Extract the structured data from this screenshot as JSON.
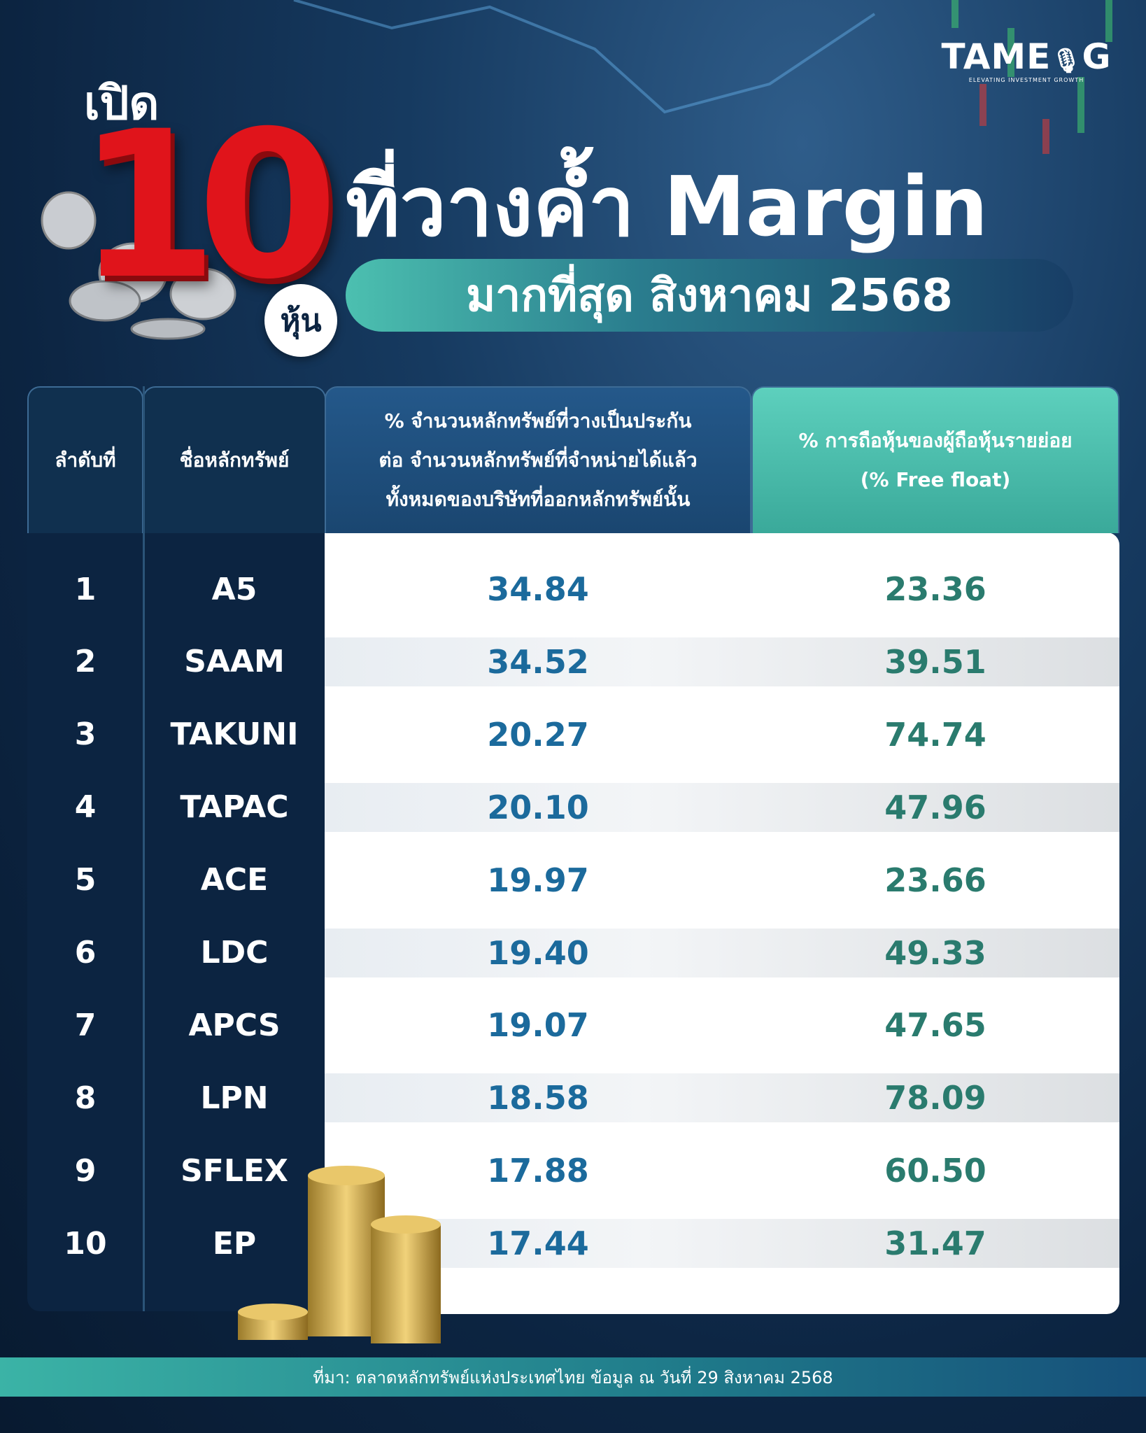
{
  "logo": {
    "name": "TAME",
    "suffix": "G",
    "tagline": "ELEVATING INVESTMENT GROWTH"
  },
  "header": {
    "open": "เปิด",
    "count": "10",
    "unit": "หุ้น",
    "title": "ที่วางค้ำ Margin",
    "subtitle": "มากที่สุด สิงหาคม 2568"
  },
  "table": {
    "columns": [
      [
        "ลำดับที่"
      ],
      [
        "ชื่อหลักทรัพย์"
      ],
      [
        "% จำนวนหลักทรัพย์ที่วางเป็นประกัน",
        "ต่อ จำนวนหลักทรัพย์ที่จำหน่ายได้แล้ว",
        "ทั้งหมดของบริษัทที่ออกหลักทรัพย์นั้น"
      ],
      [
        "% การถือหุ้นของผู้ถือหุ้นรายย่อย",
        "(% Free float)"
      ]
    ],
    "rows": [
      [
        "1",
        "A5",
        "34.84",
        "23.36"
      ],
      [
        "2",
        "SAAM",
        "34.52",
        "39.51"
      ],
      [
        "3",
        "TAKUNI",
        "20.27",
        "74.74"
      ],
      [
        "4",
        "TAPAC",
        "20.10",
        "47.96"
      ],
      [
        "5",
        "ACE",
        "19.97",
        "23.66"
      ],
      [
        "6",
        "LDC",
        "19.40",
        "49.33"
      ],
      [
        "7",
        "APCS",
        "19.07",
        "47.65"
      ],
      [
        "8",
        "LPN",
        "18.58",
        "78.09"
      ],
      [
        "9",
        "SFLEX",
        "17.88",
        "60.50"
      ],
      [
        "10",
        "EP",
        "17.44",
        "31.47"
      ]
    ]
  },
  "footer": {
    "source": "ที่มา: ตลาดหลักทรัพย์แห่งประเทศไทย ข้อมูล ณ วันที่ 29 สิงหาคม 2568"
  }
}
